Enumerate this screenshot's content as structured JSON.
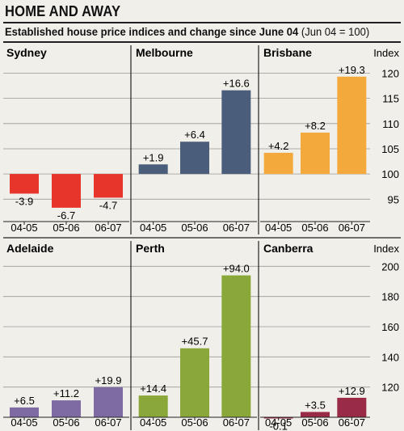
{
  "header": {
    "title": "HOME AND AWAY",
    "subtitle": "Established house price indices and change since June 04",
    "subtitle_note": "(Jun 04 = 100)"
  },
  "chart_data": {
    "type": "bar",
    "categories": [
      "04-05",
      "05-06",
      "06-07"
    ],
    "index_label": "Index",
    "rows": [
      {
        "ylim": [
          92,
          122
        ],
        "ticks": [
          95,
          100,
          105,
          110,
          115,
          120
        ],
        "baseline": 100,
        "panels": [
          {
            "name": "Sydney",
            "color": "#e8352b",
            "values": [
              -3.9,
              -6.7,
              -4.7
            ],
            "labels": [
              "-3.9",
              "-6.7",
              "-4.7"
            ]
          },
          {
            "name": "Melbourne",
            "color": "#4a5e7c",
            "values": [
              1.9,
              6.4,
              16.6
            ],
            "labels": [
              "+1.9",
              "+6.4",
              "+16.6"
            ]
          },
          {
            "name": "Brisbane",
            "color": "#f4a93c",
            "values": [
              4.2,
              8.2,
              19.3
            ],
            "labels": [
              "+4.2",
              "+8.2",
              "+19.3"
            ]
          }
        ]
      },
      {
        "ylim": [
          100,
          205
        ],
        "ticks": [
          120,
          140,
          160,
          180,
          200
        ],
        "baseline": 100,
        "panels": [
          {
            "name": "Adelaide",
            "color": "#7f6ba3",
            "values": [
              6.5,
              11.2,
              19.9
            ],
            "labels": [
              "+6.5",
              "+11.2",
              "+19.9"
            ]
          },
          {
            "name": "Perth",
            "color": "#8aa83a",
            "values": [
              14.4,
              45.7,
              94.0
            ],
            "labels": [
              "+14.4",
              "+45.7",
              "+94.0"
            ]
          },
          {
            "name": "Canberra",
            "color": "#9a2b46",
            "values": [
              -0.1,
              3.5,
              12.9
            ],
            "labels": [
              "-0.1",
              "+3.5",
              "+12.9"
            ]
          }
        ]
      }
    ]
  }
}
